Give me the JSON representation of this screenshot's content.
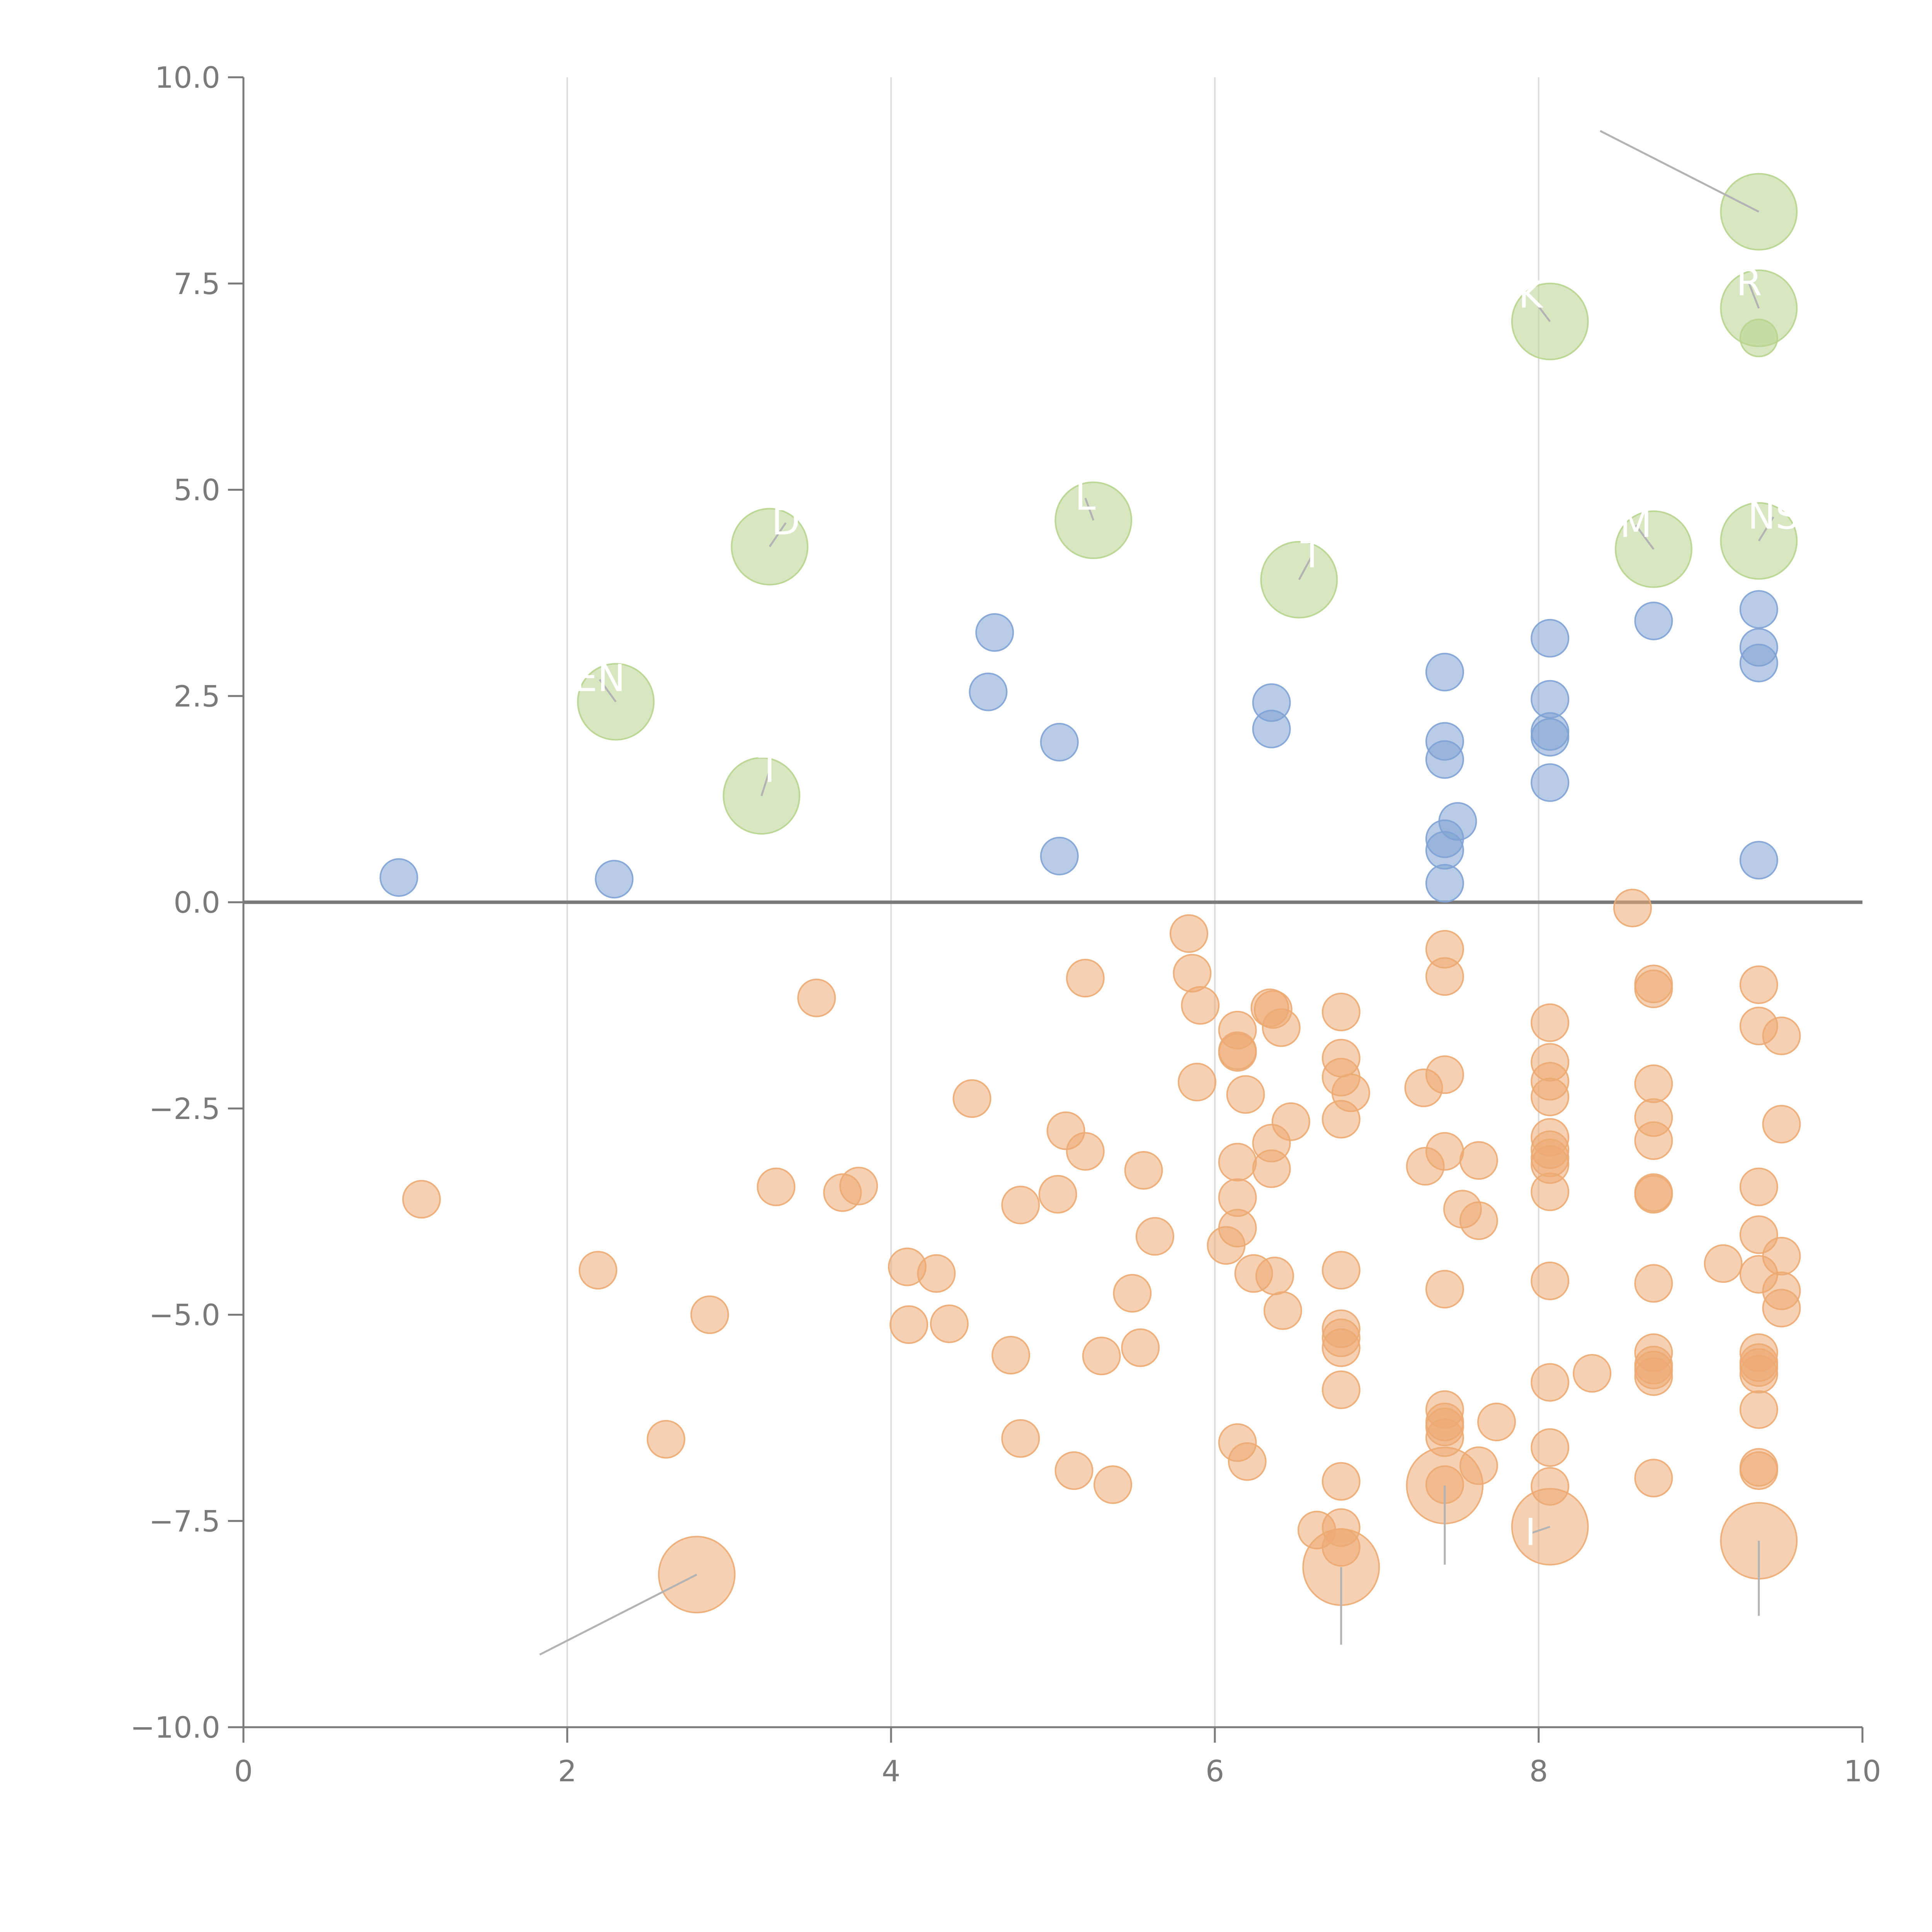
{
  "chart_data": {
    "type": "scatter",
    "title": "",
    "xlabel": "",
    "ylabel": "",
    "xlim": [
      0,
      10
    ],
    "ylim": [
      -10,
      10
    ],
    "x_ticks": [
      0,
      2,
      4,
      6,
      8,
      10
    ],
    "x_tick_labels": [
      "0",
      "2",
      "4",
      "6",
      "8",
      "10"
    ],
    "y_ticks": [
      -10,
      -7.5,
      -5,
      -2.5,
      0,
      2.5,
      5,
      7.5,
      10
    ],
    "y_tick_labels": [
      "−10.0",
      "−7.5",
      "−5.0",
      "−2.5",
      "0.0",
      "2.5",
      "5.0",
      "7.5",
      "10.0"
    ],
    "zero_line": 0,
    "vertical_grid": true,
    "series": [
      {
        "name": "positive",
        "color": "#7fa2d4",
        "opacity": 0.55,
        "size": 1,
        "points": [
          [
            0.96,
            0.3
          ],
          [
            2.29,
            0.28
          ],
          [
            4.6,
            2.55
          ],
          [
            4.64,
            3.27
          ],
          [
            5.04,
            1.94
          ],
          [
            5.04,
            0.56
          ],
          [
            6.35,
            2.42
          ],
          [
            6.35,
            2.1
          ],
          [
            7.42,
            2.79
          ],
          [
            7.42,
            1.95
          ],
          [
            7.42,
            1.73
          ],
          [
            7.42,
            0.77
          ],
          [
            7.42,
            0.63
          ],
          [
            7.42,
            0.23
          ],
          [
            7.5,
            0.98
          ],
          [
            8.07,
            3.2
          ],
          [
            8.07,
            2.46
          ],
          [
            8.07,
            2.07
          ],
          [
            8.07,
            2.0
          ],
          [
            8.07,
            1.45
          ],
          [
            8.71,
            3.41
          ],
          [
            9.36,
            3.55
          ],
          [
            9.36,
            3.09
          ],
          [
            9.36,
            2.9
          ],
          [
            9.36,
            0.51
          ]
        ]
      },
      {
        "name": "negative",
        "color": "#ecaa72",
        "opacity": 0.55,
        "size": 1,
        "points": [
          [
            1.1,
            -3.6
          ],
          [
            2.19,
            -4.46
          ],
          [
            2.61,
            -6.51
          ],
          [
            2.88,
            -5.0
          ],
          [
            3.29,
            -3.45
          ],
          [
            3.54,
            -1.16
          ],
          [
            3.7,
            -3.52
          ],
          [
            3.8,
            -3.44
          ],
          [
            4.1,
            -4.42
          ],
          [
            4.11,
            -5.12
          ],
          [
            4.28,
            -4.5
          ],
          [
            4.36,
            -5.11
          ],
          [
            4.5,
            -2.38
          ],
          [
            4.74,
            -5.49
          ],
          [
            4.8,
            -3.67
          ],
          [
            4.8,
            -6.5
          ],
          [
            5.03,
            -3.54
          ],
          [
            5.08,
            -2.77
          ],
          [
            5.13,
            -6.89
          ],
          [
            5.2,
            -0.92
          ],
          [
            5.2,
            -3.02
          ],
          [
            5.3,
            -5.5
          ],
          [
            5.37,
            -7.06
          ],
          [
            5.49,
            -4.74
          ],
          [
            5.54,
            -5.4
          ],
          [
            5.56,
            -3.25
          ],
          [
            5.63,
            -4.05
          ],
          [
            5.84,
            -0.38
          ],
          [
            5.86,
            -0.86
          ],
          [
            5.89,
            -2.18
          ],
          [
            5.91,
            -1.25
          ],
          [
            6.07,
            -4.16
          ],
          [
            6.14,
            -1.55
          ],
          [
            6.14,
            -1.8
          ],
          [
            6.14,
            -1.82
          ],
          [
            6.14,
            -3.15
          ],
          [
            6.14,
            -3.58
          ],
          [
            6.14,
            -3.95
          ],
          [
            6.14,
            -6.55
          ],
          [
            6.19,
            -2.33
          ],
          [
            6.2,
            -6.78
          ],
          [
            6.24,
            -4.5
          ],
          [
            6.34,
            -1.28
          ],
          [
            6.35,
            -2.92
          ],
          [
            6.35,
            -3.23
          ],
          [
            6.36,
            -1.3
          ],
          [
            6.37,
            -4.53
          ],
          [
            6.41,
            -1.52
          ],
          [
            6.42,
            -4.95
          ],
          [
            6.47,
            -2.66
          ],
          [
            6.63,
            -7.61
          ],
          [
            6.78,
            -1.33
          ],
          [
            6.78,
            -1.89
          ],
          [
            6.78,
            -2.12
          ],
          [
            6.78,
            -2.63
          ],
          [
            6.78,
            -4.46
          ],
          [
            6.78,
            -5.17
          ],
          [
            6.78,
            -5.28
          ],
          [
            6.78,
            -5.4
          ],
          [
            6.78,
            -5.91
          ],
          [
            6.78,
            -7.02
          ],
          [
            6.78,
            -7.58
          ],
          [
            6.78,
            -7.82
          ],
          [
            6.84,
            -2.31
          ],
          [
            7.29,
            -2.25
          ],
          [
            7.3,
            -3.2
          ],
          [
            7.42,
            -0.57
          ],
          [
            7.42,
            -0.9
          ],
          [
            7.42,
            -2.09
          ],
          [
            7.42,
            -3.02
          ],
          [
            7.42,
            -4.69
          ],
          [
            7.42,
            -6.15
          ],
          [
            7.42,
            -6.3
          ],
          [
            7.42,
            -6.36
          ],
          [
            7.42,
            -6.49
          ],
          [
            7.42,
            -7.06
          ],
          [
            7.53,
            -3.72
          ],
          [
            7.63,
            -3.13
          ],
          [
            7.63,
            -3.86
          ],
          [
            7.63,
            -6.83
          ],
          [
            7.74,
            -6.3
          ],
          [
            8.07,
            -1.46
          ],
          [
            8.07,
            -1.94
          ],
          [
            8.07,
            -2.17
          ],
          [
            8.07,
            -2.36
          ],
          [
            8.07,
            -2.85
          ],
          [
            8.07,
            -3.0
          ],
          [
            8.07,
            -3.1
          ],
          [
            8.07,
            -3.18
          ],
          [
            8.07,
            -3.51
          ],
          [
            8.07,
            -4.59
          ],
          [
            8.07,
            -5.82
          ],
          [
            8.07,
            -6.61
          ],
          [
            8.07,
            -7.08
          ],
          [
            8.33,
            -5.71
          ],
          [
            8.58,
            -0.07
          ],
          [
            8.71,
            -0.99
          ],
          [
            8.71,
            -1.05
          ],
          [
            8.71,
            -2.2
          ],
          [
            8.71,
            -2.61
          ],
          [
            8.71,
            -2.89
          ],
          [
            8.71,
            -3.52
          ],
          [
            8.71,
            -3.54
          ],
          [
            8.71,
            -4.62
          ],
          [
            8.71,
            -5.46
          ],
          [
            8.71,
            -5.61
          ],
          [
            8.71,
            -5.67
          ],
          [
            8.71,
            -5.75
          ],
          [
            8.71,
            -6.98
          ],
          [
            9.14,
            -4.38
          ],
          [
            9.36,
            -1.0
          ],
          [
            9.36,
            -1.5
          ],
          [
            9.36,
            -3.45
          ],
          [
            9.36,
            -4.03
          ],
          [
            9.36,
            -4.51
          ],
          [
            9.36,
            -5.46
          ],
          [
            9.36,
            -5.58
          ],
          [
            9.36,
            -5.64
          ],
          [
            9.36,
            -5.72
          ],
          [
            9.36,
            -6.15
          ],
          [
            9.36,
            -6.89
          ],
          [
            9.36,
            -6.85
          ],
          [
            9.5,
            -1.62
          ],
          [
            9.5,
            -2.69
          ],
          [
            9.5,
            -4.29
          ],
          [
            9.5,
            -4.71
          ],
          [
            9.5,
            -4.92
          ]
        ]
      },
      {
        "name": "highlight-positive",
        "color": "#b8d48e",
        "opacity": 0.55,
        "size": 2.05,
        "points": [
          [
            2.3,
            2.43
          ],
          [
            3.2,
            1.29
          ],
          [
            3.25,
            4.31
          ],
          [
            5.25,
            4.63
          ],
          [
            6.52,
            3.91
          ],
          [
            8.07,
            7.04
          ],
          [
            8.71,
            4.28
          ],
          [
            9.36,
            8.37
          ],
          [
            9.36,
            7.2
          ],
          [
            9.36,
            4.38
          ]
        ]
      },
      {
        "name": "highlight-small",
        "color": "#b8d48e",
        "opacity": 0.55,
        "size": 1,
        "points": [
          [
            9.36,
            6.84
          ]
        ]
      },
      {
        "name": "highlight-negative",
        "color": "#ecaa72",
        "opacity": 0.55,
        "size": 2.05,
        "points": [
          [
            2.8,
            -8.15
          ],
          [
            6.78,
            -8.06
          ],
          [
            7.42,
            -7.07
          ],
          [
            8.07,
            -7.57
          ],
          [
            9.36,
            -7.74
          ]
        ]
      }
    ],
    "annotations": [
      {
        "text": "EN",
        "at": [
          2.3,
          2.43
        ],
        "label_at": [
          2.2,
          2.7
        ]
      },
      {
        "text": "T",
        "at": [
          3.2,
          1.29
        ],
        "label_at": [
          3.25,
          1.6
        ]
      },
      {
        "text": "D",
        "at": [
          3.25,
          4.31
        ],
        "label_at": [
          3.35,
          4.6
        ]
      },
      {
        "text": "L",
        "at": [
          5.25,
          4.63
        ],
        "label_at": [
          5.2,
          4.9
        ]
      },
      {
        "text": "T",
        "at": [
          6.52,
          3.91
        ],
        "label_at": [
          6.6,
          4.2
        ]
      },
      {
        "text": "K",
        "at": [
          8.07,
          7.04
        ],
        "label_at": [
          7.95,
          7.35
        ]
      },
      {
        "text": "M",
        "at": [
          8.71,
          4.28
        ],
        "label_at": [
          8.6,
          4.57
        ]
      },
      {
        "text": "NS",
        "at": [
          9.36,
          4.38
        ],
        "label_at": [
          9.45,
          4.67
        ]
      },
      {
        "text": "R",
        "at": [
          9.36,
          7.2
        ],
        "label_at": [
          9.3,
          7.5
        ]
      },
      {
        "text": "",
        "at": [
          9.36,
          8.37
        ],
        "label_at": [
          8.38,
          9.35
        ]
      },
      {
        "text": "",
        "at": [
          2.8,
          -8.15
        ],
        "label_at": [
          1.83,
          -9.12
        ]
      },
      {
        "text": "",
        "at": [
          6.78,
          -8.06
        ],
        "label_at": [
          6.78,
          -9.0
        ]
      },
      {
        "text": "",
        "at": [
          7.42,
          -7.07
        ],
        "label_at": [
          7.42,
          -8.03
        ]
      },
      {
        "text": "I",
        "at": [
          8.07,
          -7.57
        ],
        "label_at": [
          7.95,
          -7.65
        ]
      },
      {
        "text": "",
        "at": [
          9.36,
          -7.74
        ],
        "label_at": [
          9.36,
          -8.65
        ]
      }
    ]
  }
}
